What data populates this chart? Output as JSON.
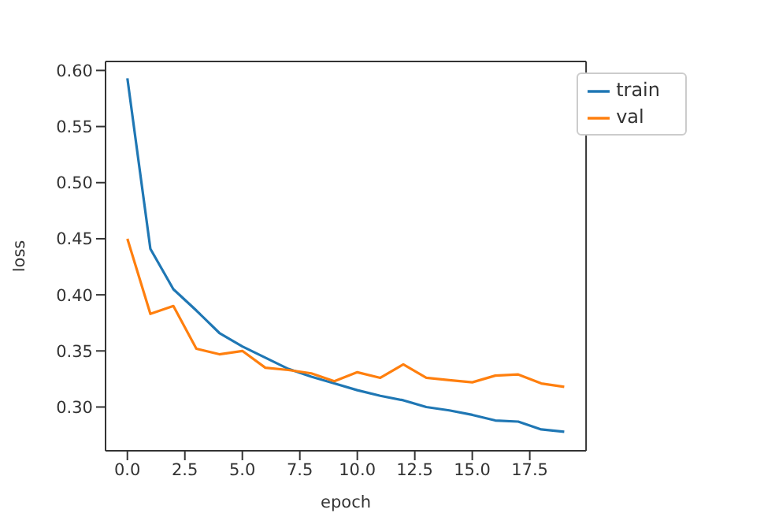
{
  "chart_data": {
    "type": "line",
    "xlabel": "epoch",
    "ylabel": "loss",
    "x": [
      0,
      1,
      2,
      3,
      4,
      5,
      6,
      7,
      8,
      9,
      10,
      11,
      12,
      13,
      14,
      15,
      16,
      17,
      18,
      19
    ],
    "series": [
      {
        "name": "train",
        "color": "#1f77b4",
        "values": [
          0.593,
          0.441,
          0.405,
          0.386,
          0.366,
          0.354,
          0.344,
          0.334,
          0.327,
          0.321,
          0.315,
          0.31,
          0.306,
          0.3,
          0.297,
          0.293,
          0.288,
          0.287,
          0.28,
          0.278
        ]
      },
      {
        "name": "val",
        "color": "#ff7f0e",
        "values": [
          0.45,
          0.383,
          0.39,
          0.352,
          0.347,
          0.35,
          0.335,
          0.333,
          0.33,
          0.323,
          0.331,
          0.326,
          0.338,
          0.326,
          0.324,
          0.322,
          0.328,
          0.329,
          0.321,
          0.318
        ]
      }
    ],
    "xlim": [
      -0.95,
      19.95
    ],
    "xticks": [
      {
        "value": 0,
        "label": "0.0"
      },
      {
        "value": 2.5,
        "label": "2.5"
      },
      {
        "value": 5,
        "label": "5.0"
      },
      {
        "value": 7.5,
        "label": "7.5"
      },
      {
        "value": 10,
        "label": "10.0"
      },
      {
        "value": 12.5,
        "label": "12.5"
      },
      {
        "value": 15,
        "label": "15.0"
      },
      {
        "value": 17.5,
        "label": "17.5"
      }
    ],
    "ylim": [
      0.261,
      0.608
    ],
    "yticks": [
      {
        "value": 0.3,
        "label": "0.30"
      },
      {
        "value": 0.35,
        "label": "0.35"
      },
      {
        "value": 0.4,
        "label": "0.40"
      },
      {
        "value": 0.45,
        "label": "0.45"
      },
      {
        "value": 0.5,
        "label": "0.50"
      },
      {
        "value": 0.55,
        "label": "0.55"
      },
      {
        "value": 0.6,
        "label": "0.60"
      }
    ],
    "legend": "top right",
    "grid": false,
    "marker": "none",
    "line_style": "solid"
  }
}
